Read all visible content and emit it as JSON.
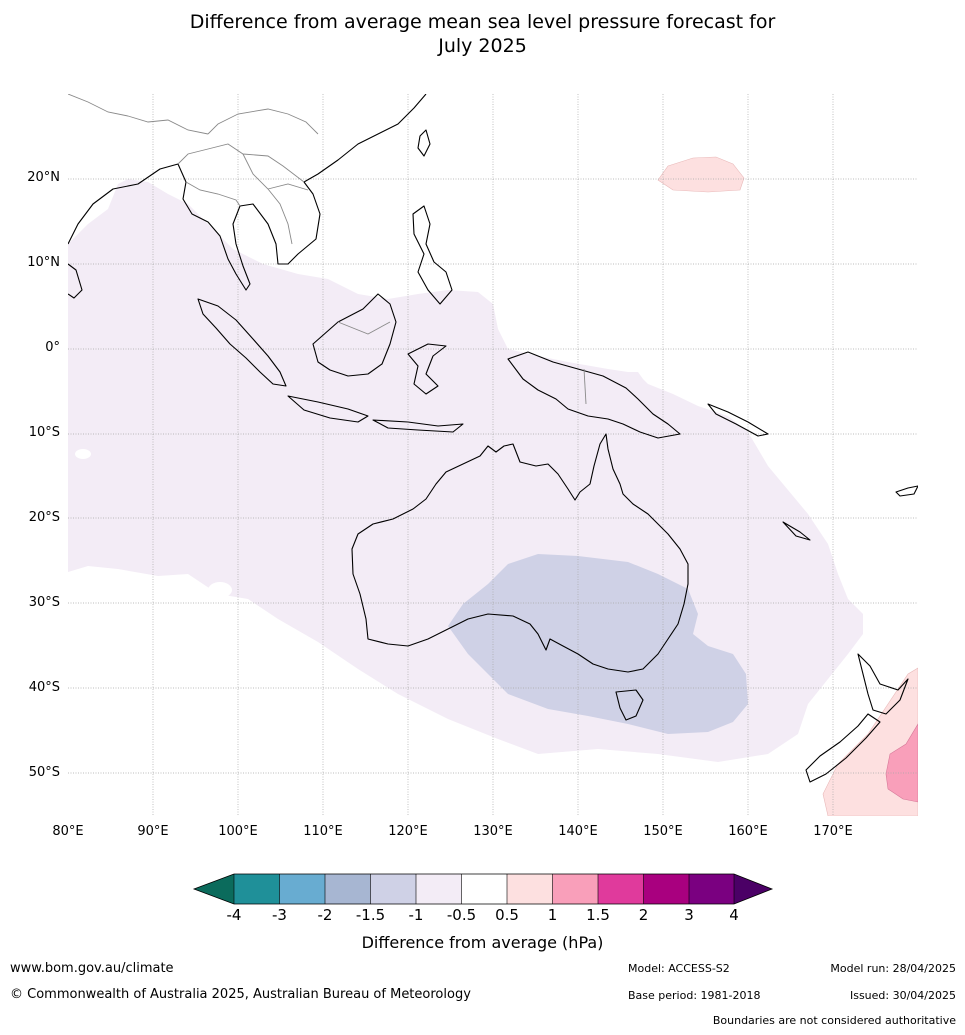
{
  "title": {
    "line1": "Difference from average mean sea level pressure forecast for",
    "line2": "July 2025"
  },
  "map": {
    "lon_ticks": [
      "80°E",
      "90°E",
      "100°E",
      "110°E",
      "120°E",
      "130°E",
      "140°E",
      "150°E",
      "160°E",
      "170°E"
    ],
    "lat_ticks": [
      "20°N",
      "10°N",
      "0°",
      "10°S",
      "20°S",
      "30°S",
      "40°S",
      "50°S"
    ]
  },
  "colorbar": {
    "labels": [
      "-4",
      "-3",
      "-2",
      "-1.5",
      "-1",
      "-0.5",
      "0.5",
      "1",
      "1.5",
      "2",
      "3",
      "4"
    ],
    "colors": {
      "below_-4": "#0b6b5c",
      "-4_-3": "#1f9099",
      "-3_-2": "#68acd1",
      "-2_-1.5": "#a7b6d2",
      "-1.5_-1": "#cfd1e6",
      "-1_-0.5": "#f3ecf6",
      "-0.5_0.5": "#ffffff",
      "0.5_1": "#fde0e0",
      "1_1.5": "#f99fba",
      "1.5_2": "#e03a9c",
      "2_3": "#a9007f",
      "3_4": "#7a0080",
      "above_4": "#4b0066"
    },
    "title": "Difference from average (hPa)"
  },
  "footer": {
    "url": "www.bom.gov.au/climate",
    "copyright": "© Commonwealth of Australia 2025, Australian Bureau of Meteorology",
    "model": "Model: ACCESS-S2",
    "base_period": "Base period: 1981-2018",
    "model_run": "Model run: 28/04/2025",
    "issued": "Issued: 30/04/2025",
    "disclaimer": "Boundaries are not considered authoritative"
  }
}
